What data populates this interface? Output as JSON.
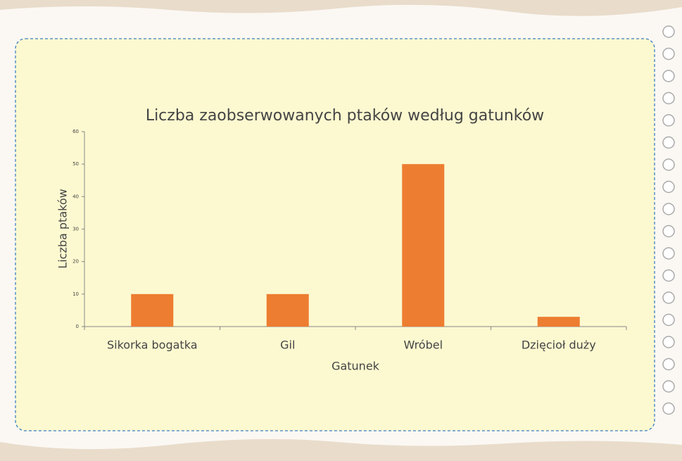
{
  "chart_data": {
    "type": "bar",
    "title": "Liczba zaobserwowanych ptaków według gatunków",
    "x_label": "Gatunek",
    "y_label": "Liczba ptaków",
    "categories": [
      "Sikorka bogatka",
      "Gil",
      "Wróbel",
      "Dzięcioł duży"
    ],
    "values": [
      10,
      10,
      50,
      3
    ],
    "color": "#ed7d31",
    "ylim": [
      0,
      60
    ],
    "yticks": [
      0,
      10,
      20,
      30,
      40,
      50,
      60
    ],
    "grid": false
  }
}
